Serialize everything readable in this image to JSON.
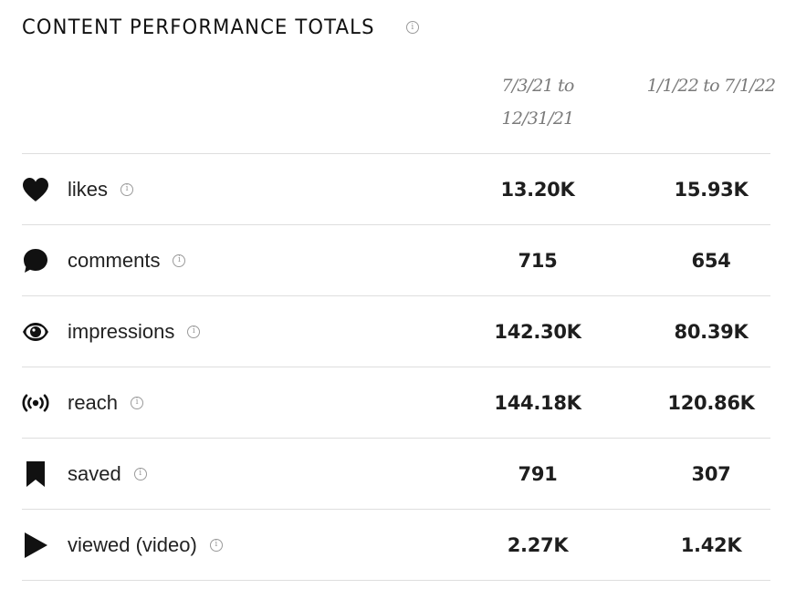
{
  "header": {
    "title": "CONTENT PERFORMANCE TOTALS",
    "info_glyph": "i"
  },
  "columns": [
    {
      "line1": "7/3/21 to",
      "line2": "12/31/21"
    },
    {
      "line1": "1/1/22 to 7/1/22",
      "line2": ""
    }
  ],
  "rows": [
    {
      "label": "likes",
      "icon": "heart-icon",
      "v1": "13.20K",
      "v2": "15.93K"
    },
    {
      "label": "comments",
      "icon": "speech-bubble-icon",
      "v1": "715",
      "v2": "654"
    },
    {
      "label": "impressions",
      "icon": "eye-icon",
      "v1": "142.30K",
      "v2": "80.39K"
    },
    {
      "label": "reach",
      "icon": "broadcast-icon",
      "v1": "144.18K",
      "v2": "120.86K"
    },
    {
      "label": "saved",
      "icon": "bookmark-icon",
      "v1": "791",
      "v2": "307"
    },
    {
      "label": "viewed (video)",
      "icon": "play-icon",
      "v1": "2.27K",
      "v2": "1.42K"
    }
  ]
}
